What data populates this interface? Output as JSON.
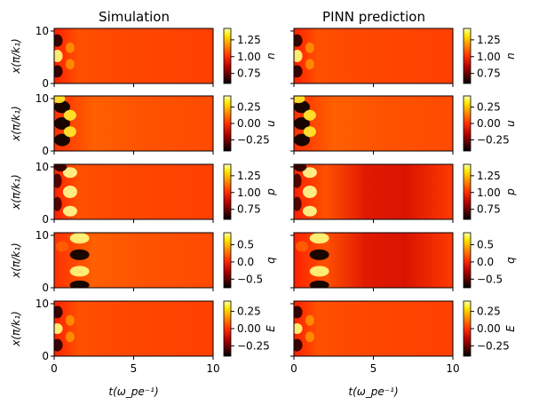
{
  "chart_data": {
    "type": "heatmap",
    "columns": [
      {
        "title": "Simulation"
      },
      {
        "title": "PINN prediction"
      }
    ],
    "rows": [
      {
        "var": "n",
        "colorbar": {
          "ticks": [
            "0.75",
            "1.00",
            "1.25"
          ],
          "values": [
            0.75,
            1.0,
            1.25
          ],
          "range": [
            0.6,
            1.42
          ]
        }
      },
      {
        "var": "u",
        "colorbar": {
          "ticks": [
            "−0.25",
            "0.00",
            "0.25"
          ],
          "values": [
            -0.25,
            0.0,
            0.25
          ],
          "range": [
            -0.42,
            0.42
          ]
        }
      },
      {
        "var": "p",
        "colorbar": {
          "ticks": [
            "0.75",
            "1.00",
            "1.25"
          ],
          "values": [
            0.75,
            1.0,
            1.25
          ],
          "range": [
            0.6,
            1.42
          ]
        }
      },
      {
        "var": "q",
        "colorbar": {
          "ticks": [
            "−0.5",
            "0.0",
            "0.5"
          ],
          "values": [
            -0.5,
            0.0,
            0.5
          ],
          "range": [
            -0.75,
            0.85
          ]
        }
      },
      {
        "var": "E",
        "colorbar": {
          "ticks": [
            "−0.25",
            "0.00",
            "0.25"
          ],
          "values": [
            -0.25,
            0.0,
            0.25
          ],
          "range": [
            -0.4,
            0.4
          ]
        }
      }
    ],
    "ylabel": "x(π/k₁)",
    "xlabel": "t(ω_pe⁻¹)",
    "x_ticks": [
      "0",
      "5",
      "10"
    ],
    "y_ticks": [
      "0",
      "10"
    ],
    "xlim": [
      0,
      10
    ],
    "ylim": [
      0,
      10.5
    ],
    "colormap": "hot"
  }
}
